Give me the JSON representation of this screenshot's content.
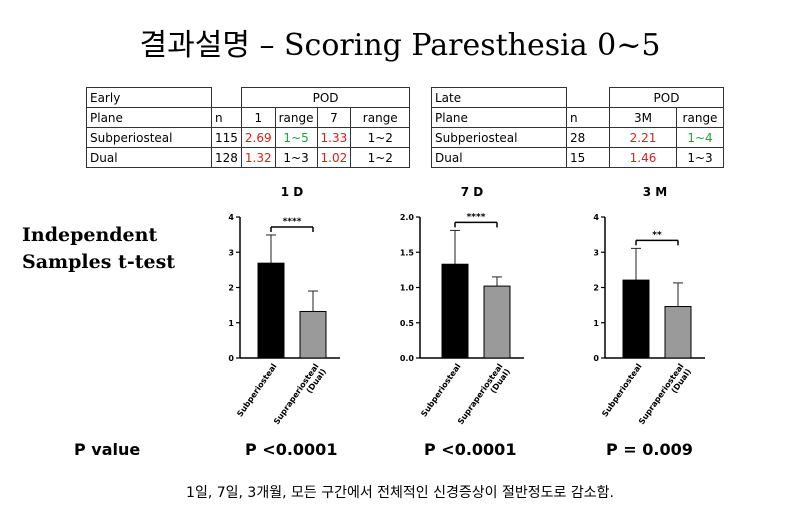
{
  "title": "결과설명 – Scoring Paresthesia 0~5",
  "table_early": {
    "label": "Early",
    "group_header": "POD",
    "headers": [
      "Plane",
      "n",
      "1",
      "range",
      "7",
      "range"
    ],
    "rows": [
      {
        "plane": "Subperiosteal",
        "n": "115",
        "d1": "2.69",
        "r1": "1~5",
        "d7": "1.33",
        "r7": "1~2"
      },
      {
        "plane": "Dual",
        "n": "128",
        "d1": "1.32",
        "r1": "1~3",
        "d7": "1.02",
        "r7": "1~2"
      }
    ]
  },
  "table_late": {
    "label": "Late",
    "group_header": "POD",
    "headers": [
      "Plane",
      "n",
      "3M",
      "range"
    ],
    "rows": [
      {
        "plane": "Subperiosteal",
        "n": "28",
        "m3": "2.21",
        "r3": "1~4"
      },
      {
        "plane": "Dual",
        "n": "15",
        "m3": "1.46",
        "r3": "1~3"
      }
    ]
  },
  "side_label": [
    "Independent",
    "Samples t-test"
  ],
  "pvalue_label": "P value",
  "chart_data": [
    {
      "type": "bar",
      "title": "1 D",
      "categories": [
        "Subperiosteal",
        "Supraperiosteal (Dual)"
      ],
      "values": [
        2.69,
        1.32
      ],
      "error": [
        0.8,
        0.58
      ],
      "colors": [
        "#000000",
        "#9a9a9a"
      ],
      "ylim": [
        0,
        4
      ],
      "yticks": [
        "0",
        "1",
        "2",
        "3",
        "4"
      ],
      "significance": "****",
      "p_value": "P <0.0001"
    },
    {
      "type": "bar",
      "title": "7 D",
      "categories": [
        "Subperiosteal",
        "Supraperiosteal (Dual)"
      ],
      "values": [
        1.33,
        1.02
      ],
      "error": [
        0.48,
        0.13
      ],
      "colors": [
        "#000000",
        "#9a9a9a"
      ],
      "ylim": [
        0,
        2
      ],
      "yticks": [
        "0.0",
        "0.5",
        "1.0",
        "1.5",
        "2.0"
      ],
      "significance": "****",
      "p_value": "P <0.0001"
    },
    {
      "type": "bar",
      "title": "3 M",
      "categories": [
        "Subperiosteal",
        "Supraperiosteal (Dual)"
      ],
      "values": [
        2.21,
        1.46
      ],
      "error": [
        0.9,
        0.67
      ],
      "colors": [
        "#000000",
        "#9a9a9a"
      ],
      "ylim": [
        0,
        4
      ],
      "yticks": [
        "0",
        "1",
        "2",
        "3",
        "4"
      ],
      "significance": "**",
      "p_value": "P = 0.009"
    }
  ],
  "conclusion": "1일, 7일, 3개월, 모든 구간에서 전체적인 신경증상이 절반정도로 감소함."
}
